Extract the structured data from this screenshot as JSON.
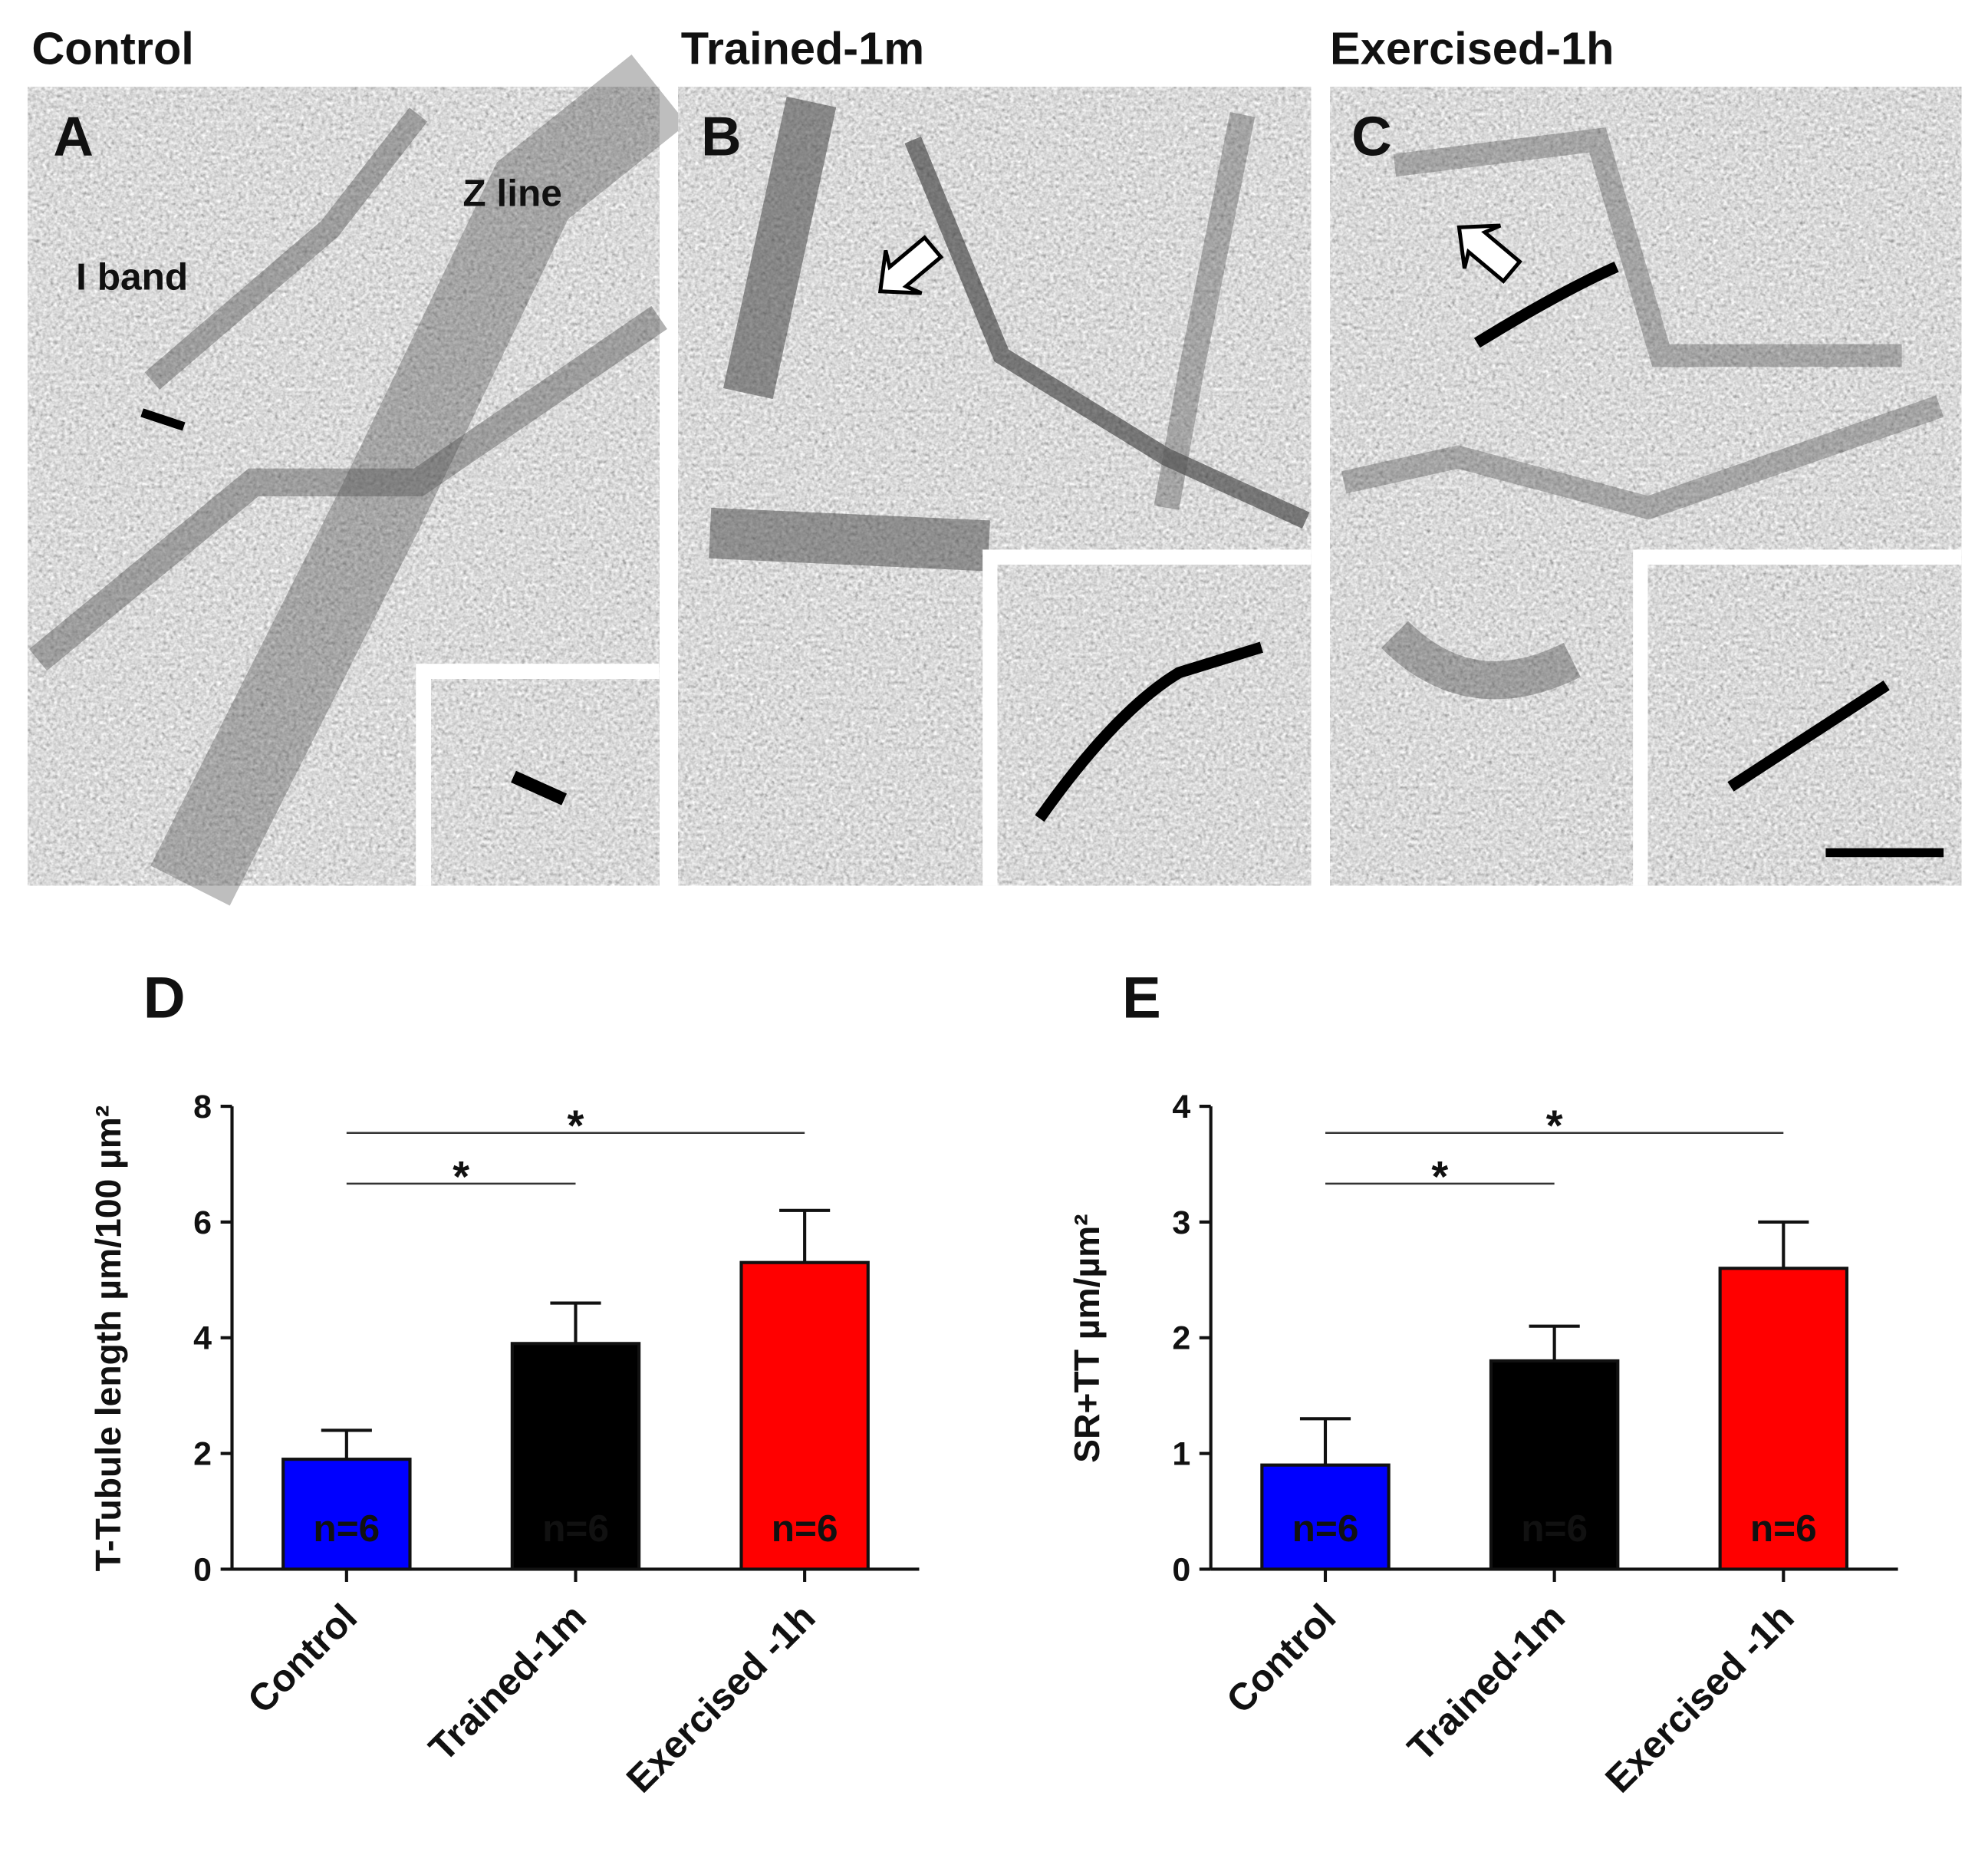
{
  "panels": [
    {
      "label": "A",
      "title": "Control",
      "annotations": [
        "I band",
        "Z line"
      ]
    },
    {
      "label": "B",
      "title": "Trained-1m"
    },
    {
      "label": "C",
      "title": "Exercised-1h"
    }
  ],
  "chart_data": [
    {
      "type": "bar",
      "panel_label": "D",
      "ylabel": "T-Tubule length µm/100 µm²",
      "categories": [
        "Control",
        "Trained-1m",
        "Exercised -1h"
      ],
      "values": [
        1.9,
        3.9,
        5.3
      ],
      "errors": [
        0.5,
        0.7,
        0.9
      ],
      "colors": [
        "#0000ff",
        "#000000",
        "#ff0000"
      ],
      "bar_labels": [
        "n=6",
        "n=6",
        "n=6"
      ],
      "ylim": [
        0,
        8
      ],
      "yticks": [
        0,
        2,
        4,
        6,
        8
      ],
      "significance": [
        {
          "categories": [
            "Control",
            "Trained-1m"
          ],
          "label": "*"
        },
        {
          "categories": [
            "Control",
            "Exercised -1h"
          ],
          "label": "*"
        }
      ]
    },
    {
      "type": "bar",
      "panel_label": "E",
      "ylabel": "SR+TT µm/µm²",
      "categories": [
        "Control",
        "Trained-1m",
        "Exercised -1h"
      ],
      "values": [
        0.9,
        1.8,
        2.6
      ],
      "errors": [
        0.4,
        0.3,
        0.4
      ],
      "colors": [
        "#0000ff",
        "#000000",
        "#ff0000"
      ],
      "bar_labels": [
        "n=6",
        "n=6",
        "n=6"
      ],
      "ylim": [
        0,
        4
      ],
      "yticks": [
        0,
        1,
        2,
        3,
        4
      ],
      "significance": [
        {
          "categories": [
            "Control",
            "Trained-1m"
          ],
          "label": "*"
        },
        {
          "categories": [
            "Control",
            "Exercised -1h"
          ],
          "label": "*"
        }
      ]
    }
  ]
}
